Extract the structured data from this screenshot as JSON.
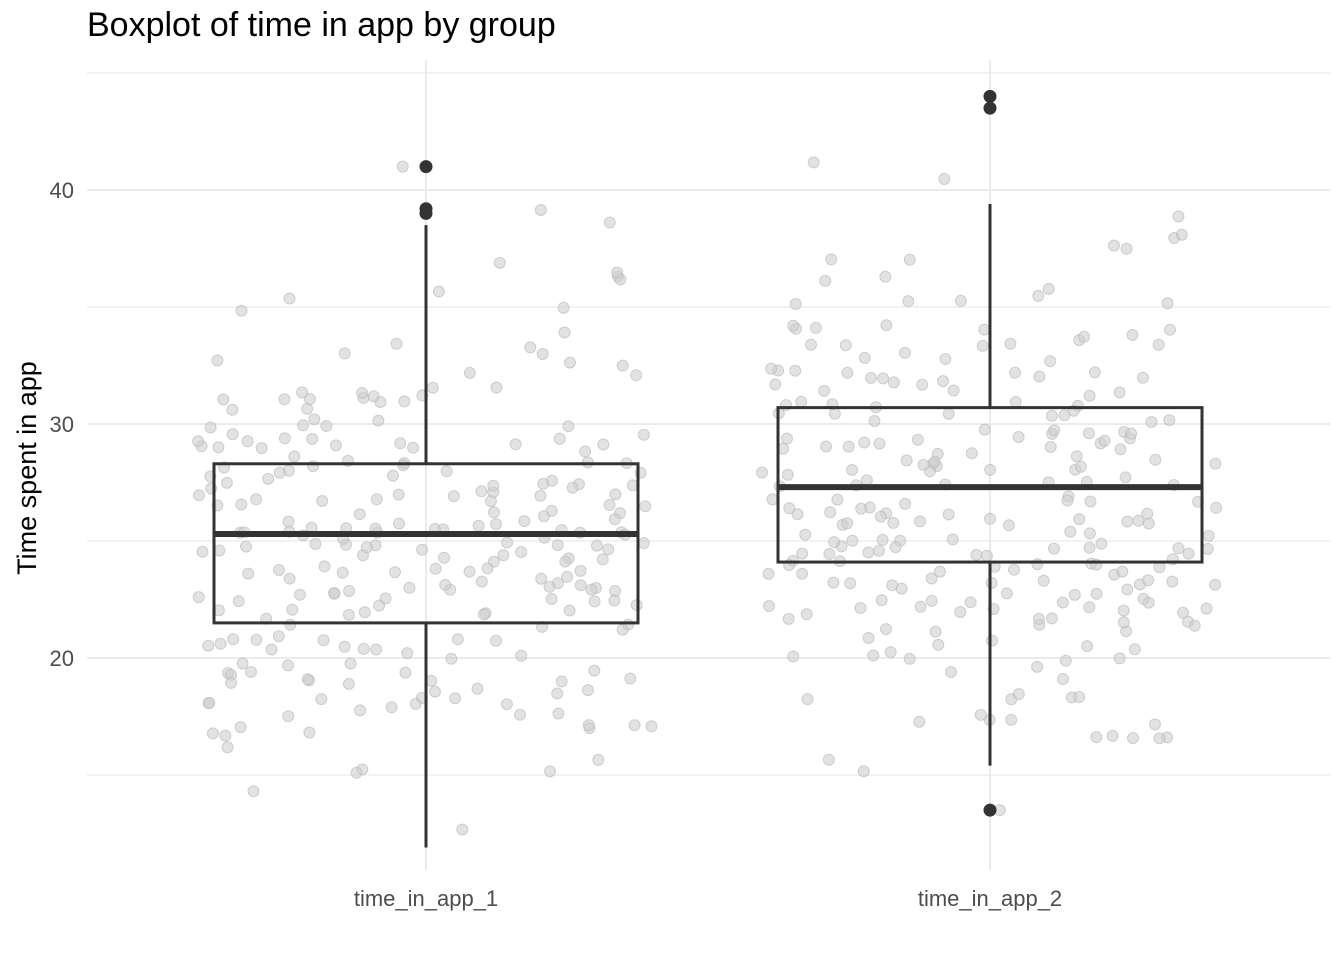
{
  "chart_data": {
    "type": "boxplot",
    "title": "Boxplot of time in app by group",
    "xlabel": "",
    "ylabel": "Time spent in app",
    "ylim": [
      11,
      46
    ],
    "y_ticks": [
      20,
      30,
      40
    ],
    "y_tick_labels": [
      "20",
      "30",
      "40"
    ],
    "categories": [
      "time_in_app_1",
      "time_in_app_2"
    ],
    "grid": true,
    "boxes": [
      {
        "category": "time_in_app_1",
        "q1": 21.5,
        "median": 25.3,
        "q3": 28.3,
        "whisker_low": 11.9,
        "whisker_high": 38.5,
        "outliers": [
          41.0,
          39.2,
          39.0
        ]
      },
      {
        "category": "time_in_app_2",
        "q1": 24.1,
        "median": 27.3,
        "q3": 30.7,
        "whisker_low": 15.4,
        "whisker_high": 39.4,
        "outliers": [
          44.0,
          43.5,
          13.5
        ]
      }
    ],
    "jitter": {
      "seed": 20240,
      "n_per_group": 250,
      "groups": [
        {
          "category": "time_in_app_1",
          "mean": 25.2,
          "sd": 5.0,
          "min": 11.9,
          "max": 41.0
        },
        {
          "category": "time_in_app_2",
          "mean": 27.3,
          "sd": 5.1,
          "min": 13.5,
          "max": 44.0
        }
      ]
    },
    "colors": {
      "box": "#333333",
      "grid": "#ebebeb",
      "jitter_fill": "#cfcfcf",
      "jitter_stroke": "#b8b8b8"
    }
  }
}
